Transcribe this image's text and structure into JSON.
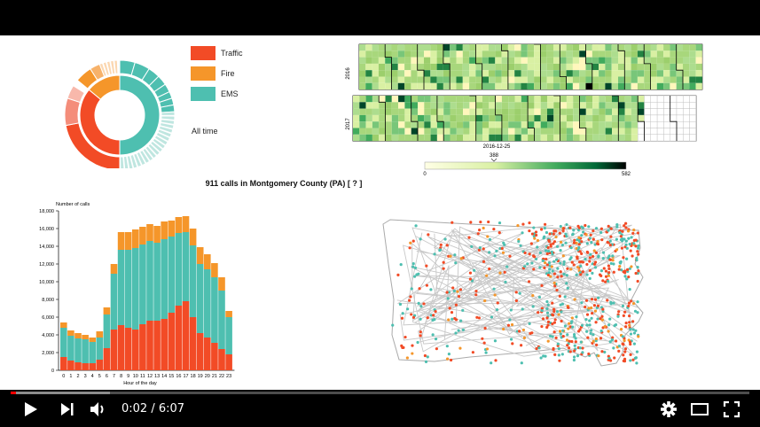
{
  "legend": {
    "items": [
      {
        "label": "Traffic",
        "color": "#f24b26"
      },
      {
        "label": "Fire",
        "color": "#f5962a"
      },
      {
        "label": "EMS",
        "color": "#4ebfb0"
      }
    ],
    "period": "All time"
  },
  "page_title": "911 calls in Montgomery County (PA) [ ? ]",
  "calendar": {
    "years": [
      "2016",
      "2017"
    ],
    "highlight_date": "2016-12-25",
    "colorbar": {
      "min": "0",
      "max": "582",
      "marker": "388"
    }
  },
  "chart_data": {
    "type": "bar",
    "stacked": true,
    "ylabel": "Number of calls",
    "xlabel": "Hour of the day",
    "ylim": [
      0,
      18000
    ],
    "yticks": [
      "0",
      "2,000",
      "4,000",
      "6,000",
      "8,000",
      "10,000",
      "12,000",
      "14,000",
      "16,000",
      "18,000"
    ],
    "categories": [
      "0",
      "1",
      "2",
      "3",
      "4",
      "5",
      "6",
      "7",
      "8",
      "9",
      "10",
      "11",
      "12",
      "13",
      "14",
      "15",
      "16",
      "17",
      "18",
      "19",
      "20",
      "21",
      "22",
      "23"
    ],
    "series": [
      {
        "name": "Traffic",
        "color": "#f24b26",
        "values": [
          1500,
          1100,
          900,
          800,
          800,
          1200,
          2500,
          4600,
          5100,
          4800,
          4600,
          5200,
          5600,
          5600,
          5800,
          6500,
          7300,
          7800,
          6000,
          4200,
          3700,
          3100,
          2400,
          1800
        ]
      },
      {
        "name": "EMS",
        "color": "#4ebfb0",
        "values": [
          3300,
          2800,
          2700,
          2700,
          2400,
          2500,
          3800,
          6300,
          8500,
          8800,
          9200,
          9000,
          9000,
          8800,
          9000,
          8600,
          8200,
          7800,
          8100,
          7800,
          7700,
          7400,
          6600,
          4200
        ]
      },
      {
        "name": "Fire",
        "color": "#f5962a",
        "values": [
          600,
          600,
          600,
          500,
          500,
          700,
          800,
          1100,
          2000,
          2000,
          2100,
          2000,
          1900,
          1900,
          2000,
          1800,
          1800,
          1800,
          1900,
          1900,
          1700,
          1600,
          1500,
          700
        ]
      }
    ]
  },
  "player": {
    "time": "0:02 / 6:07",
    "progress": 0.007,
    "buffered": 0.135,
    "colors": {
      "played": "#ff0000",
      "icons": "#ffffff"
    }
  }
}
